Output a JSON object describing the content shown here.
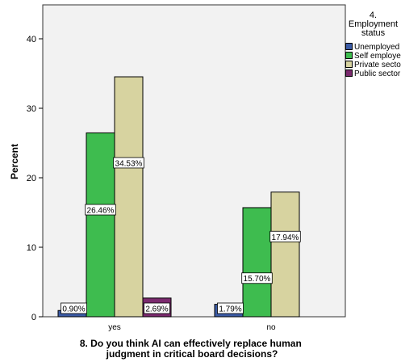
{
  "chart_data": {
    "type": "bar",
    "title": "",
    "xlabel": "8. Do you think AI can effectively replace human\njudgment in critical board decisions?",
    "ylabel": "Percent",
    "ylim": [
      0,
      45
    ],
    "yticks": [
      "0",
      "10",
      "20",
      "30",
      "40"
    ],
    "grid": false,
    "legend_position": "top-right",
    "legend_title": "4.\nEmployment\nstatus",
    "categories": [
      "yes",
      "no"
    ],
    "series": [
      {
        "name": "Unemployed",
        "color": "#3b5ba5",
        "values": [
          0.9,
          1.79
        ],
        "labels": [
          "0.90%",
          "1.79%"
        ]
      },
      {
        "name": "Self employed",
        "color": "#3ebc4f",
        "values": [
          26.46,
          15.7
        ],
        "labels": [
          "26.46%",
          "15.70%"
        ]
      },
      {
        "name": "Private sector",
        "color": "#d7d3a0",
        "values": [
          34.53,
          17.94
        ],
        "labels": [
          "34.53%",
          "17.94%"
        ]
      },
      {
        "name": "Public sector",
        "color": "#7b2a6e",
        "values": [
          2.69,
          null
        ],
        "labels": [
          "2.69%",
          null
        ]
      }
    ]
  }
}
